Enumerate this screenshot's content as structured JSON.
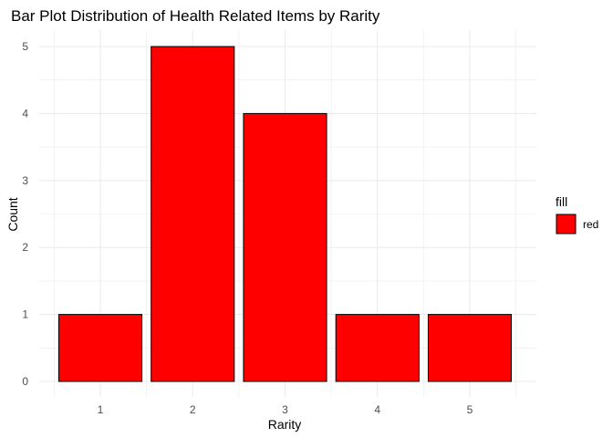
{
  "chart_data": {
    "type": "bar",
    "title": "Bar Plot Distribution of Health Related Items by Rarity",
    "xlabel": "Rarity",
    "ylabel": "Count",
    "categories": [
      "1",
      "2",
      "3",
      "4",
      "5"
    ],
    "values": [
      1,
      5,
      4,
      1,
      1
    ],
    "ylim": [
      0,
      5
    ],
    "yticks": [
      "0",
      "1",
      "2",
      "3",
      "4",
      "5"
    ],
    "grid": true,
    "bar_color": "#ff0000",
    "bar_outline": "#000000",
    "legend": {
      "title": "fill",
      "placement": "right",
      "entries": [
        {
          "label": "red",
          "color": "#ff0000"
        }
      ]
    }
  }
}
